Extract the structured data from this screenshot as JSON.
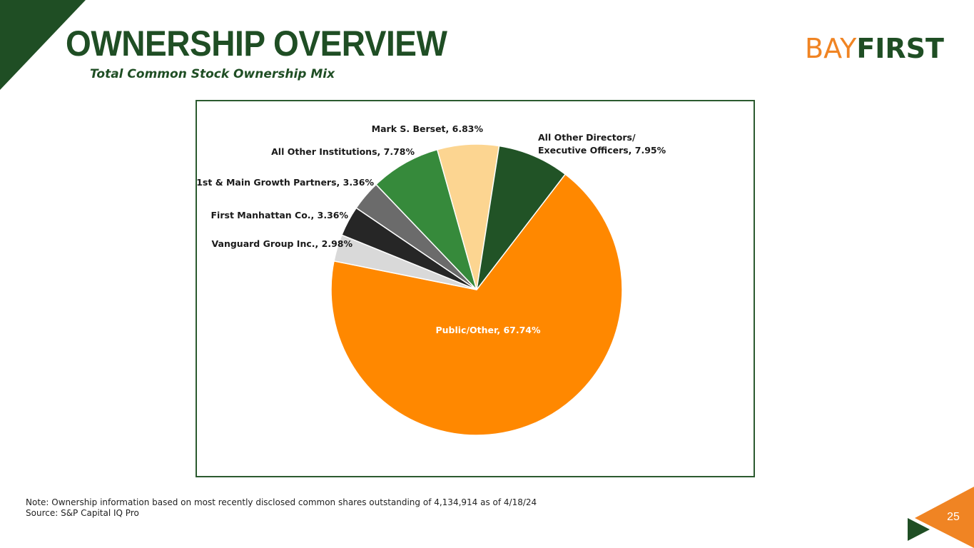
{
  "header": {
    "title": "OWNERSHIP OVERVIEW",
    "subtitle": "Total Common Stock Ownership Mix"
  },
  "logo": {
    "part1": "BAY",
    "part2": "FIRST"
  },
  "colors": {
    "brand_green": "#1f4e24",
    "brand_orange": "#f08423"
  },
  "chart_data": {
    "type": "pie",
    "slices": [
      {
        "label": "Public/Other, 67.74%",
        "value": 67.74,
        "color": "#ff8800"
      },
      {
        "label": "Vanguard Group Inc., 2.98%",
        "value": 2.98,
        "color": "#d9d9d9"
      },
      {
        "label": "First Manhattan Co., 3.36%",
        "value": 3.36,
        "color": "#262626"
      },
      {
        "label": "1st & Main Growth Partners, 3.36%",
        "value": 3.36,
        "color": "#6b6b6b"
      },
      {
        "label": "All Other Institutions, 7.78%",
        "value": 7.78,
        "color": "#368a3b"
      },
      {
        "label": "Mark S. Berset, 6.83%",
        "value": 6.83,
        "color": "#fcd591"
      },
      {
        "label": "All Other Directors/\nExecutive Officers, 7.95%",
        "value": 7.95,
        "color": "#215326"
      }
    ]
  },
  "footer": {
    "note": "Note: Ownership information based on most recently disclosed common shares outstanding of 4,134,914 as of 4/18/24",
    "source": "Source: S&P Capital IQ Pro",
    "page_number": "25"
  }
}
